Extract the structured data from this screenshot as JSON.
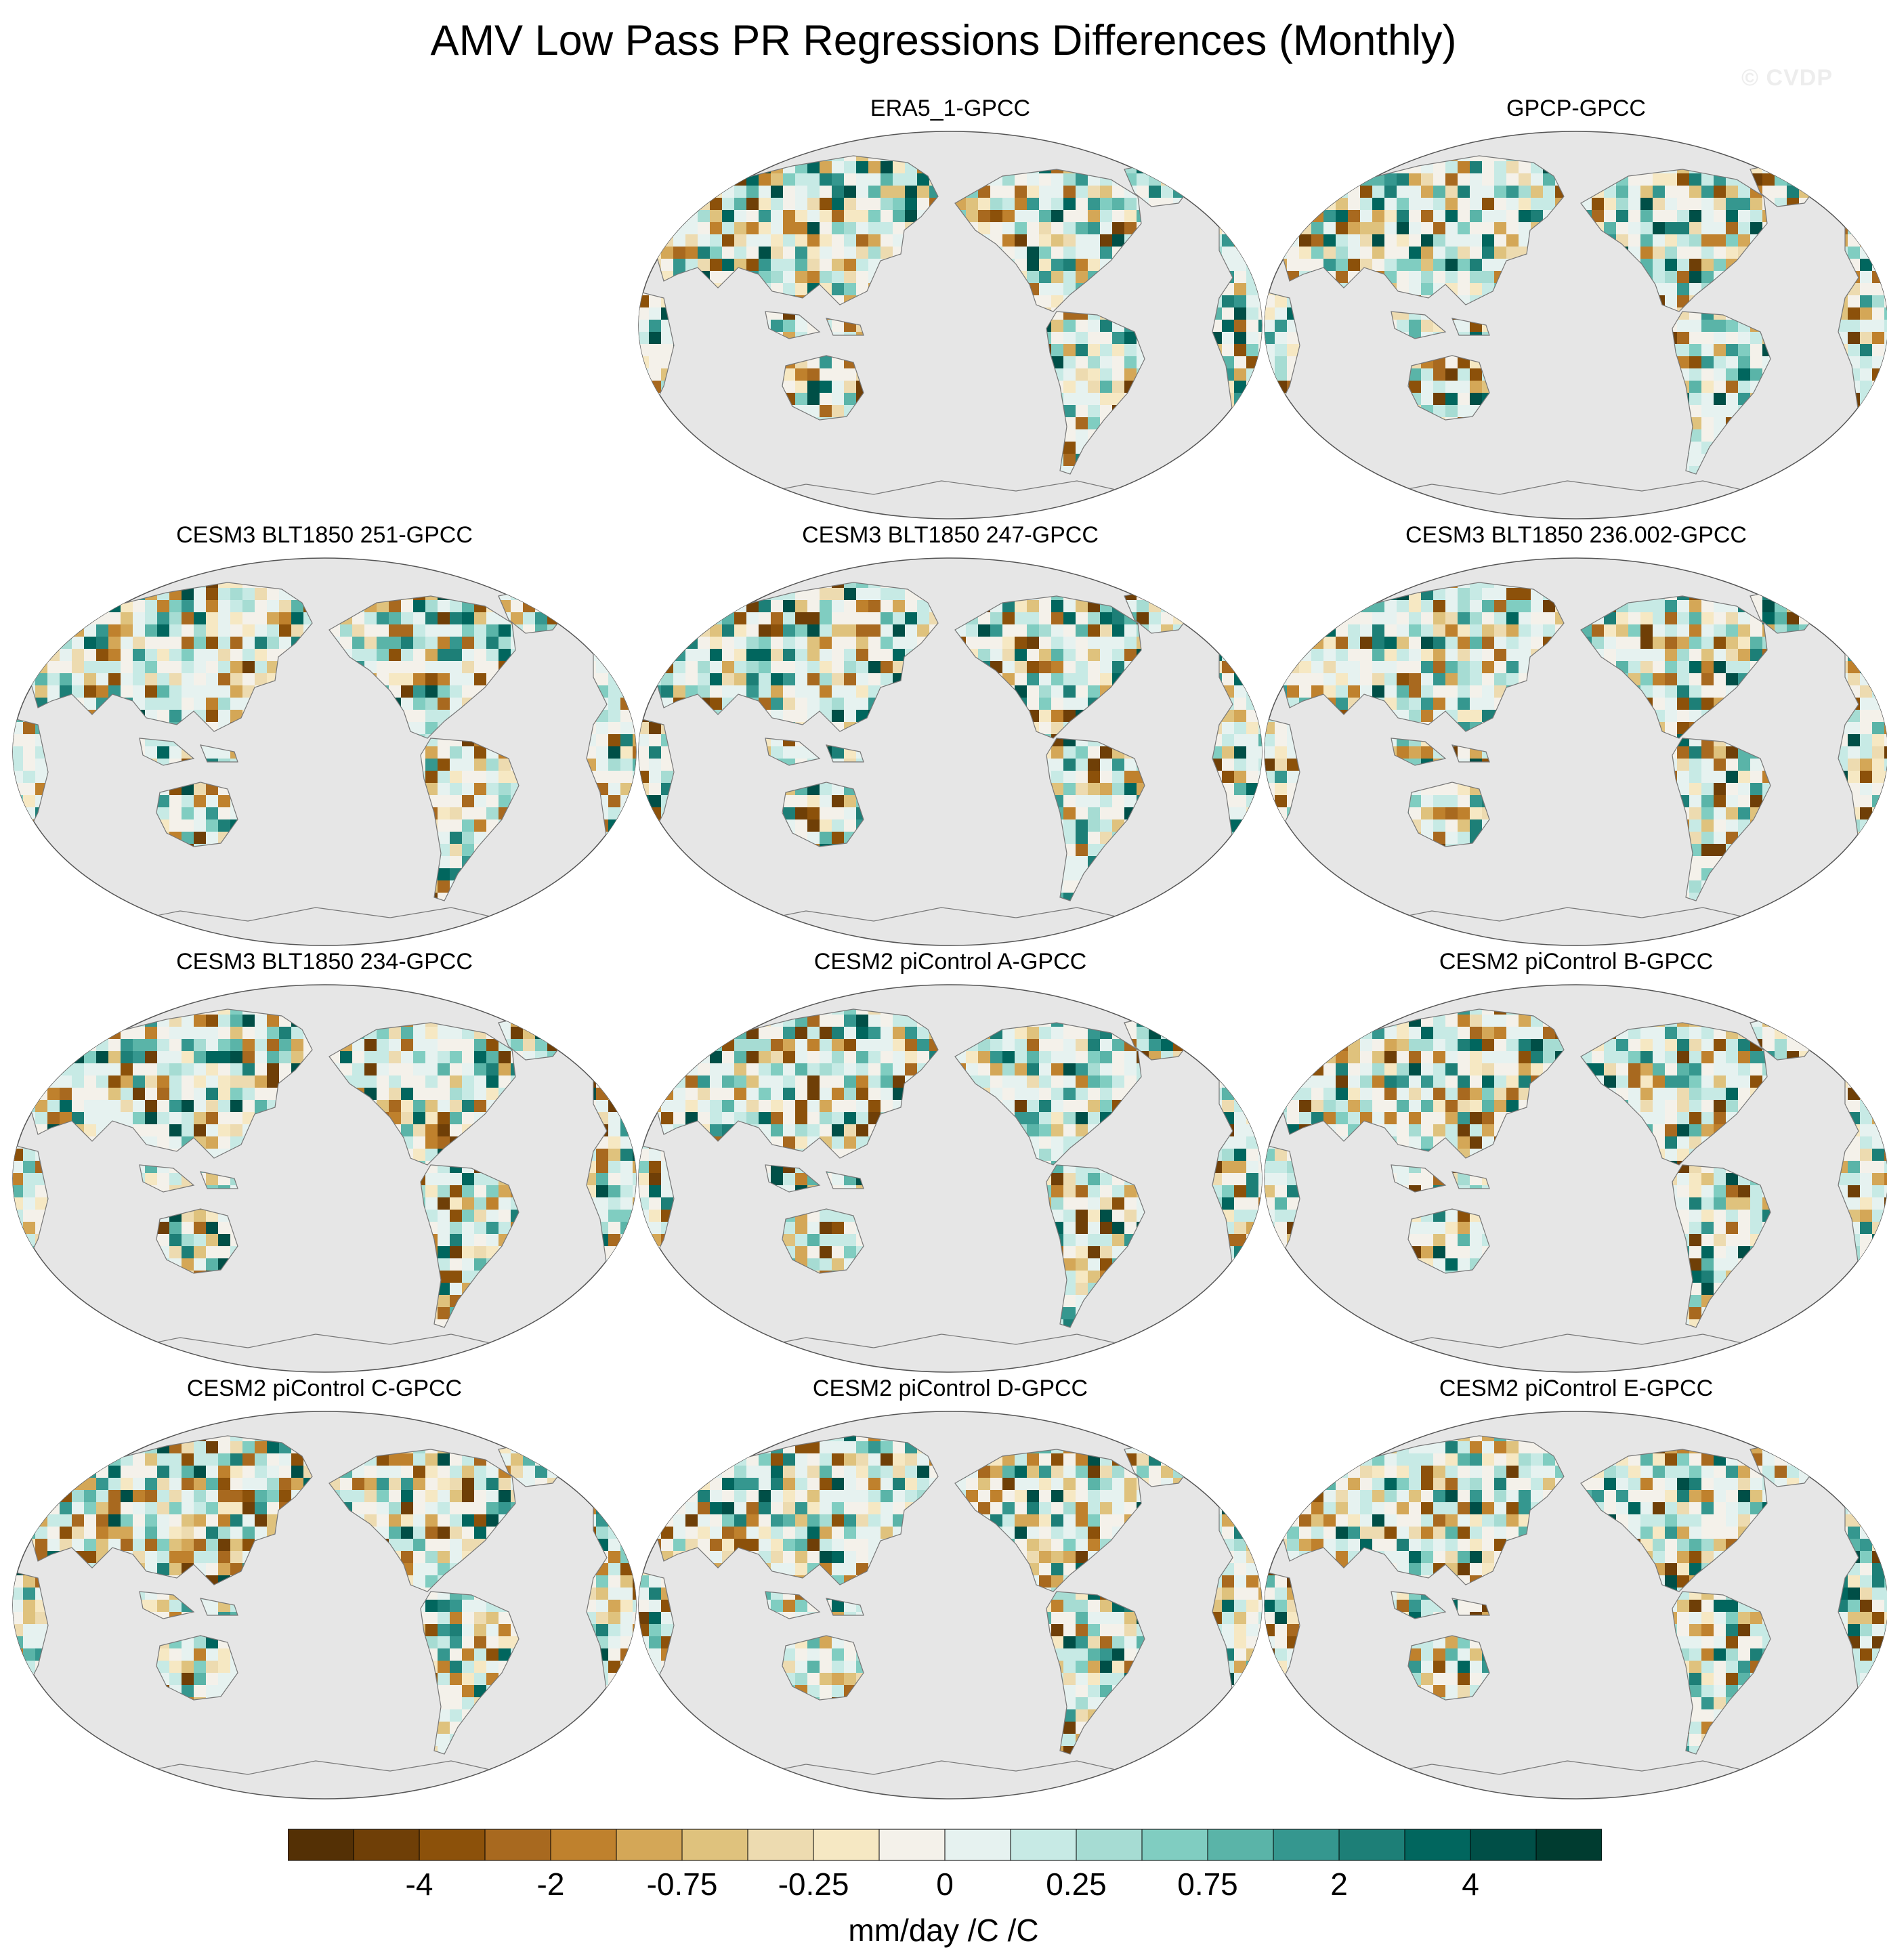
{
  "title": "AMV Low Pass PR Regressions Differences (Monthly)",
  "watermark": "© CVDP",
  "panels": [
    {
      "title": "ERA5_1-GPCC",
      "seed": 11
    },
    {
      "title": "GPCP-GPCC",
      "seed": 23
    },
    {
      "title": "CESM3 BLT1850 251-GPCC",
      "seed": 37
    },
    {
      "title": "CESM3 BLT1850 247-GPCC",
      "seed": 41
    },
    {
      "title": "CESM3 BLT1850 236.002-GPCC",
      "seed": 53
    },
    {
      "title": "CESM3 BLT1850 234-GPCC",
      "seed": 67
    },
    {
      "title": "CESM2 piControl A-GPCC",
      "seed": 71
    },
    {
      "title": "CESM2 piControl B-GPCC",
      "seed": 83
    },
    {
      "title": "CESM2 piControl C-GPCC",
      "seed": 97
    },
    {
      "title": "CESM2 piControl D-GPCC",
      "seed": 101
    },
    {
      "title": "CESM2 piControl E-GPCC",
      "seed": 113
    }
  ],
  "colorbar": {
    "units": "mm/day /C /C",
    "colors": [
      "#543005",
      "#6f3f07",
      "#8c510a",
      "#a8691f",
      "#bf812d",
      "#d4a757",
      "#dfc27d",
      "#eddbb0",
      "#f6e8c3",
      "#f4f1ea",
      "#e6f2f0",
      "#c7eae5",
      "#a6dcd3",
      "#80cdc1",
      "#5ab4a8",
      "#35978f",
      "#1d7f77",
      "#01665e",
      "#004f47",
      "#003c30"
    ],
    "labels": [
      {
        "text": "-4",
        "boundary": 2
      },
      {
        "text": "-2",
        "boundary": 4
      },
      {
        "text": "-0.75",
        "boundary": 6
      },
      {
        "text": "-0.25",
        "boundary": 8
      },
      {
        "text": "0",
        "boundary": 10
      },
      {
        "text": "0.25",
        "boundary": 12
      },
      {
        "text": "0.75",
        "boundary": 14
      },
      {
        "text": "2",
        "boundary": 16
      },
      {
        "text": "4",
        "boundary": 18
      }
    ]
  }
}
